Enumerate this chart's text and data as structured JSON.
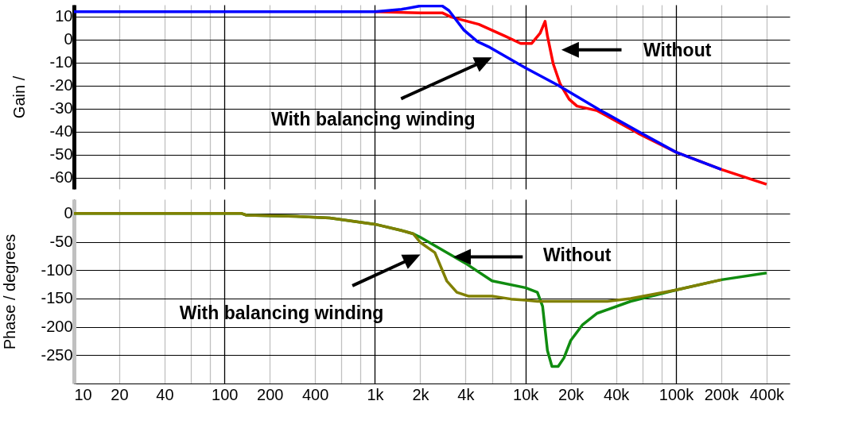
{
  "chart_data": [
    {
      "type": "line",
      "ylabel": "Gain /",
      "xlim": [
        10,
        570000
      ],
      "ylim": [
        -65,
        15
      ],
      "log": "x",
      "grid": true,
      "tick_labels": "y",
      "line_style": "solid",
      "xticks": [
        10,
        20,
        40,
        60,
        80,
        100,
        200,
        400,
        600,
        800,
        1000,
        2000,
        4000,
        6000,
        8000,
        10000,
        20000,
        40000,
        60000,
        80000,
        100000,
        200000,
        400000
      ],
      "yticks": [
        10,
        0,
        -10,
        -20,
        -30,
        -40,
        -50,
        -60
      ],
      "series": [
        {
          "color": "#ff0000",
          "x": [
            1000,
            2000,
            2800,
            3200,
            4900,
            7300,
            9300,
            11000,
            12500,
            13500,
            14000,
            15300,
            17000,
            19500,
            22000,
            30000,
            56000,
            100000,
            200000,
            400000
          ],
          "values": [
            12,
            11.5,
            11.5,
            9.7,
            6.5,
            1.4,
            -1.8,
            -1.8,
            2.6,
            7.8,
            1.4,
            -10.7,
            -19.4,
            -26,
            -29,
            -31,
            -40.8,
            -49,
            -56.5,
            -63
          ]
        },
        {
          "color": "#0000ff",
          "x": [
            10,
            100,
            1000,
            1500,
            2000,
            2800,
            3100,
            3900,
            4800,
            5800,
            10000,
            16500,
            31000,
            58000,
            100000,
            200000
          ],
          "values": [
            12,
            12,
            12,
            13,
            14.5,
            14.5,
            12.5,
            4,
            -1,
            -3.5,
            -12.4,
            -20,
            -30.6,
            -40.5,
            -49,
            -56.5
          ]
        }
      ],
      "annotations": [
        "With balancing winding",
        "Without"
      ]
    },
    {
      "type": "line",
      "ylabel": "Phase / degrees",
      "xlim": [
        10,
        570000
      ],
      "ylim": [
        -300,
        25
      ],
      "log": "x",
      "grid": true,
      "line_style": "solid",
      "xticks": [
        10,
        20,
        40,
        {
          "value": 60,
          "label": null
        },
        {
          "value": 80,
          "label": null
        },
        100,
        200,
        400,
        {
          "value": 600,
          "label": null
        },
        {
          "value": 800,
          "label": null
        },
        {
          "value": 1000,
          "label": "1k"
        },
        {
          "value": 2000,
          "label": "2k"
        },
        {
          "value": 4000,
          "label": "4k"
        },
        {
          "value": 6000,
          "label": null
        },
        {
          "value": 8000,
          "label": null
        },
        {
          "value": 10000,
          "label": "10k"
        },
        {
          "value": 20000,
          "label": "20k"
        },
        {
          "value": 40000,
          "label": "40k"
        },
        {
          "value": 60000,
          "label": null
        },
        {
          "value": 80000,
          "label": null
        },
        {
          "value": 100000,
          "label": "100k"
        },
        {
          "value": 200000,
          "label": "200k"
        },
        {
          "value": 400000,
          "label": "400k"
        }
      ],
      "yticks": [
        0,
        -50,
        -100,
        -150,
        -200,
        -250
      ],
      "series": [
        {
          "color": "#108c10",
          "x": [
            10,
            130,
            140,
            300,
            500,
            1000,
            1500,
            1800,
            2000,
            4000,
            6000,
            10000,
            12000,
            13000,
            14000,
            15000,
            16500,
            18000,
            20000,
            24000,
            30000,
            50000,
            100000,
            200000,
            400000
          ],
          "values": [
            0,
            0,
            -3,
            -5,
            -8,
            -19,
            -30,
            -36,
            -42,
            -88,
            -119,
            -131,
            -139,
            -164,
            -242,
            -270,
            -270,
            -255,
            -224,
            -196,
            -176,
            -155,
            -135,
            -117,
            -105
          ]
        },
        {
          "color": "#808000",
          "x": [
            10,
            130,
            140,
            300,
            500,
            1000,
            1500,
            1800,
            2000,
            2500,
            3000,
            3500,
            4200,
            6000,
            8000,
            10000,
            12000,
            35000,
            50000,
            100000,
            200000
          ],
          "values": [
            0,
            0,
            -3,
            -5,
            -8,
            -19,
            -30,
            -36,
            -51,
            -69,
            -119,
            -139,
            -146,
            -146,
            -151,
            -153,
            -155,
            -155,
            -150,
            -135,
            -117
          ]
        }
      ],
      "annotations": [
        "With balancing winding",
        "Without"
      ]
    }
  ]
}
